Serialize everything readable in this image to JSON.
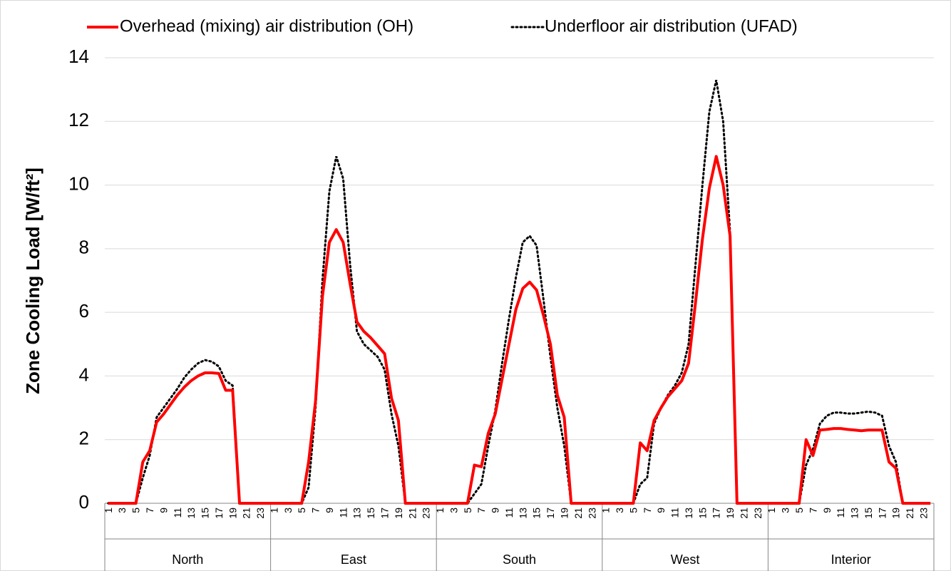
{
  "chart_data": {
    "type": "line",
    "legend": "top",
    "grid": true,
    "ylabel": "Zone Cooling Load [W/ft²]",
    "groups": [
      "North",
      "East",
      "South",
      "West",
      "Interior"
    ],
    "categories": [
      1,
      null,
      3,
      null,
      5,
      null,
      7,
      null,
      9,
      null,
      11,
      null,
      13,
      null,
      15,
      null,
      17,
      null,
      19,
      null,
      21,
      null,
      23,
      null,
      1,
      null,
      3,
      null,
      5,
      null,
      7,
      null,
      9,
      null,
      11,
      null,
      13,
      null,
      15,
      null,
      17,
      null,
      19,
      null,
      21,
      null,
      23,
      null,
      1,
      null,
      3,
      null,
      5,
      null,
      7,
      null,
      9,
      null,
      11,
      null,
      13,
      null,
      15,
      null,
      17,
      null,
      19,
      null,
      21,
      null,
      23,
      null,
      1,
      null,
      3,
      null,
      5,
      null,
      7,
      null,
      9,
      null,
      11,
      null,
      13,
      null,
      15,
      null,
      17,
      null,
      19,
      null,
      21,
      null,
      23,
      null,
      1,
      null,
      3,
      null,
      5,
      null,
      7,
      null,
      9,
      null,
      11,
      null,
      13,
      null,
      15,
      null,
      17,
      null,
      19,
      null,
      21,
      null,
      23,
      null
    ],
    "ylim": [
      0,
      14
    ],
    "yticks": [
      0,
      2,
      4,
      6,
      8,
      10,
      12,
      14
    ],
    "series": [
      {
        "name": "Overhead (mixing) air distribution (OH)",
        "color": "#ff0000",
        "dash": "solid",
        "values": [
          0,
          0,
          0,
          0,
          0,
          1.3,
          1.65,
          2.55,
          2.8,
          3.1,
          3.4,
          3.65,
          3.85,
          4.0,
          4.1,
          4.1,
          4.08,
          3.55,
          3.55,
          0,
          0,
          0,
          0,
          0,
          0,
          0,
          0,
          0,
          0,
          1.3,
          3.2,
          6.5,
          8.2,
          8.6,
          8.2,
          6.9,
          5.7,
          5.4,
          5.2,
          4.95,
          4.7,
          3.3,
          2.6,
          0,
          0,
          0,
          0,
          0,
          0,
          0,
          0,
          0,
          0,
          1.2,
          1.15,
          2.2,
          2.8,
          3.9,
          5.0,
          6.1,
          6.75,
          6.95,
          6.7,
          5.9,
          5.0,
          3.4,
          2.7,
          0,
          0,
          0,
          0,
          0,
          0,
          0,
          0,
          0,
          0,
          1.9,
          1.65,
          2.6,
          3.0,
          3.35,
          3.6,
          3.85,
          4.4,
          6.3,
          8.3,
          9.9,
          10.9,
          10.0,
          8.4,
          0,
          0,
          0,
          0,
          0,
          0,
          0,
          0,
          0,
          0,
          2.0,
          1.5,
          2.3,
          2.32,
          2.35,
          2.35,
          2.32,
          2.3,
          2.28,
          2.3,
          2.3,
          2.3,
          1.3,
          1.1,
          0,
          0,
          0,
          0,
          0
        ]
      },
      {
        "name": "Underfloor air distribution (UFAD)",
        "color": "#000000",
        "dash": "dotted",
        "values": [
          0,
          0,
          0,
          0,
          0,
          0.8,
          1.5,
          2.7,
          3.0,
          3.3,
          3.6,
          3.95,
          4.2,
          4.4,
          4.5,
          4.45,
          4.3,
          3.85,
          3.7,
          0,
          0,
          0,
          0,
          0,
          0,
          0,
          0,
          0,
          0,
          0.5,
          3.0,
          7.0,
          9.8,
          10.9,
          10.2,
          7.5,
          5.4,
          5.0,
          4.8,
          4.6,
          4.2,
          2.8,
          1.8,
          0,
          0,
          0,
          0,
          0,
          0,
          0,
          0,
          0,
          0,
          0.3,
          0.6,
          1.8,
          2.9,
          4.4,
          5.8,
          7.1,
          8.2,
          8.4,
          8.1,
          6.4,
          4.6,
          3.0,
          1.8,
          0,
          0,
          0,
          0,
          0,
          0,
          0,
          0,
          0,
          0,
          0.6,
          0.8,
          2.5,
          3.0,
          3.4,
          3.7,
          4.1,
          5.0,
          7.5,
          10.0,
          12.3,
          13.3,
          12.0,
          8.5,
          0,
          0,
          0,
          0,
          0,
          0,
          0,
          0,
          0,
          0,
          1.2,
          1.7,
          2.5,
          2.75,
          2.85,
          2.85,
          2.82,
          2.82,
          2.85,
          2.88,
          2.85,
          2.75,
          1.8,
          1.3,
          0,
          0,
          0,
          0,
          0
        ]
      }
    ]
  }
}
